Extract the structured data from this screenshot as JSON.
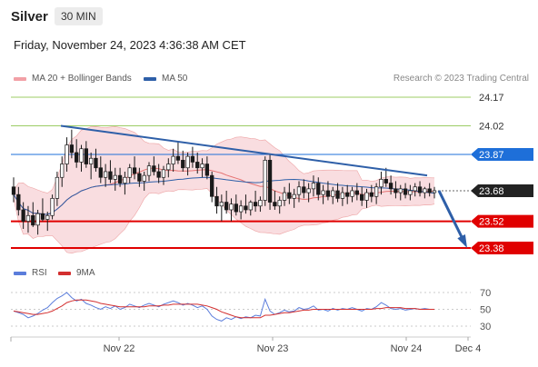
{
  "header": {
    "title": "Silver",
    "timeframe": "30 MIN",
    "datetime": "Friday, November 24, 2023 4:36:38 AM CET",
    "copyright": "Research © 2023 Trading Central"
  },
  "legend": {
    "bollinger": "MA 20 + Bollinger Bands",
    "ma50": "MA 50",
    "rsi": "RSI",
    "rsi_ma": "9MA"
  },
  "colors": {
    "candle": "#1a1a1a",
    "bollinger_fill": "#f5c6cb",
    "bollinger_line": "#e57373",
    "ma50": "#2e5fa8",
    "support": "#e00000",
    "resistance_green": "#9ccc65",
    "resistance_blue": "#1e6fd9",
    "current": "#222222",
    "trendline": "#2e5fa8",
    "rsi_line": "#5b7ddb",
    "rsi_ma": "#d32f2f"
  },
  "chart_data": [
    {
      "type": "candlestick",
      "title": "Silver",
      "timeframe": "30 MIN",
      "ylim": [
        23.28,
        24.25
      ],
      "x_ticks": [
        "Nov 22",
        "Nov 23",
        "Nov 24",
        "Dec 4"
      ],
      "levels": [
        {
          "value": 24.17,
          "label": "24.17",
          "kind": "resistance",
          "style": "green"
        },
        {
          "value": 24.02,
          "label": "24.02",
          "kind": "resistance",
          "style": "green"
        },
        {
          "value": 23.87,
          "label": "23.87",
          "kind": "resistance",
          "style": "blue"
        },
        {
          "value": 23.68,
          "label": "23.68",
          "kind": "current",
          "style": "dark"
        },
        {
          "value": 23.52,
          "label": "23.52",
          "kind": "support",
          "style": "red"
        },
        {
          "value": 23.38,
          "label": "23.38",
          "kind": "support",
          "style": "red"
        }
      ],
      "trendline": {
        "from": {
          "x": "Nov 21 13:00",
          "y": 24.02
        },
        "to": {
          "x": "Nov 24 08:00",
          "y": 23.76
        }
      },
      "forecast_arrow": {
        "from": 23.68,
        "to": 23.38
      },
      "candles_ohlc": [
        [
          23.7,
          23.75,
          23.62,
          23.66
        ],
        [
          23.66,
          23.7,
          23.55,
          23.58
        ],
        [
          23.58,
          23.62,
          23.48,
          23.52
        ],
        [
          23.52,
          23.6,
          23.46,
          23.55
        ],
        [
          23.55,
          23.62,
          23.49,
          23.5
        ],
        [
          23.5,
          23.58,
          23.45,
          23.56
        ],
        [
          23.56,
          23.64,
          23.52,
          23.53
        ],
        [
          23.53,
          23.57,
          23.47,
          23.55
        ],
        [
          23.55,
          23.66,
          23.53,
          23.64
        ],
        [
          23.64,
          23.78,
          23.6,
          23.75
        ],
        [
          23.75,
          23.86,
          23.7,
          23.82
        ],
        [
          23.82,
          23.96,
          23.78,
          23.92
        ],
        [
          23.92,
          24.0,
          23.85,
          23.88
        ],
        [
          23.88,
          23.95,
          23.8,
          23.83
        ],
        [
          23.83,
          23.92,
          23.78,
          23.9
        ],
        [
          23.9,
          23.94,
          23.8,
          23.82
        ],
        [
          23.82,
          23.88,
          23.74,
          23.85
        ],
        [
          23.85,
          23.9,
          23.78,
          23.8
        ],
        [
          23.8,
          23.86,
          23.72,
          23.75
        ],
        [
          23.75,
          23.82,
          23.7,
          23.78
        ],
        [
          23.78,
          23.84,
          23.72,
          23.74
        ],
        [
          23.74,
          23.8,
          23.68,
          23.76
        ],
        [
          23.76,
          23.8,
          23.7,
          23.72
        ],
        [
          23.72,
          23.78,
          23.66,
          23.75
        ],
        [
          23.75,
          23.82,
          23.72,
          23.8
        ],
        [
          23.8,
          23.86,
          23.74,
          23.77
        ],
        [
          23.77,
          23.8,
          23.7,
          23.73
        ],
        [
          23.73,
          23.78,
          23.68,
          23.76
        ],
        [
          23.76,
          23.83,
          23.73,
          23.81
        ],
        [
          23.81,
          23.86,
          23.76,
          23.78
        ],
        [
          23.78,
          23.82,
          23.72,
          23.75
        ],
        [
          23.75,
          23.81,
          23.71,
          23.79
        ],
        [
          23.79,
          23.85,
          23.75,
          23.82
        ],
        [
          23.82,
          23.9,
          23.78,
          23.86
        ],
        [
          23.86,
          23.94,
          23.82,
          23.84
        ],
        [
          23.84,
          23.89,
          23.78,
          23.8
        ],
        [
          23.8,
          23.88,
          23.76,
          23.86
        ],
        [
          23.86,
          23.91,
          23.8,
          23.83
        ],
        [
          23.83,
          23.88,
          23.77,
          23.8
        ],
        [
          23.8,
          23.85,
          23.75,
          23.82
        ],
        [
          23.82,
          23.86,
          23.74,
          23.76
        ],
        [
          23.76,
          23.78,
          23.62,
          23.65
        ],
        [
          23.65,
          23.7,
          23.56,
          23.6
        ],
        [
          23.6,
          23.66,
          23.52,
          23.62
        ],
        [
          23.62,
          23.68,
          23.56,
          23.58
        ],
        [
          23.58,
          23.64,
          23.52,
          23.61
        ],
        [
          23.61,
          23.66,
          23.55,
          23.57
        ],
        [
          23.57,
          23.63,
          23.53,
          23.6
        ],
        [
          23.6,
          23.66,
          23.56,
          23.58
        ],
        [
          23.58,
          23.63,
          23.55,
          23.62
        ],
        [
          23.62,
          23.68,
          23.57,
          23.6
        ],
        [
          23.6,
          23.65,
          23.57,
          23.63
        ],
        [
          23.63,
          23.86,
          23.6,
          23.84
        ],
        [
          23.84,
          23.87,
          23.58,
          23.62
        ],
        [
          23.62,
          23.68,
          23.58,
          23.6
        ],
        [
          23.6,
          23.65,
          23.56,
          23.63
        ],
        [
          23.63,
          23.7,
          23.6,
          23.67
        ],
        [
          23.67,
          23.72,
          23.61,
          23.64
        ],
        [
          23.64,
          23.69,
          23.59,
          23.66
        ],
        [
          23.66,
          23.73,
          23.62,
          23.7
        ],
        [
          23.7,
          23.74,
          23.64,
          23.67
        ],
        [
          23.67,
          23.72,
          23.62,
          23.69
        ],
        [
          23.69,
          23.76,
          23.65,
          23.72
        ],
        [
          23.72,
          23.75,
          23.63,
          23.66
        ],
        [
          23.66,
          23.71,
          23.61,
          23.68
        ],
        [
          23.68,
          23.73,
          23.63,
          23.65
        ],
        [
          23.65,
          23.7,
          23.61,
          23.68
        ],
        [
          23.68,
          23.72,
          23.62,
          23.64
        ],
        [
          23.64,
          23.7,
          23.6,
          23.67
        ],
        [
          23.67,
          23.71,
          23.61,
          23.65
        ],
        [
          23.65,
          23.7,
          23.62,
          23.68
        ],
        [
          23.68,
          23.72,
          23.63,
          23.66
        ],
        [
          23.66,
          23.7,
          23.6,
          23.63
        ],
        [
          23.63,
          23.69,
          23.59,
          23.67
        ],
        [
          23.67,
          23.71,
          23.62,
          23.65
        ],
        [
          23.65,
          23.72,
          23.61,
          23.7
        ],
        [
          23.7,
          23.78,
          23.66,
          23.74
        ],
        [
          23.74,
          23.8,
          23.7,
          23.72
        ],
        [
          23.72,
          23.76,
          23.66,
          23.69
        ],
        [
          23.69,
          23.73,
          23.64,
          23.67
        ],
        [
          23.67,
          23.71,
          23.63,
          23.69
        ],
        [
          23.69,
          23.72,
          23.64,
          23.66
        ],
        [
          23.66,
          23.71,
          23.63,
          23.68
        ],
        [
          23.68,
          23.72,
          23.65,
          23.7
        ],
        [
          23.7,
          23.73,
          23.65,
          23.67
        ],
        [
          23.67,
          23.7,
          23.64,
          23.69
        ],
        [
          23.69,
          23.72,
          23.65,
          23.67
        ],
        [
          23.67,
          23.7,
          23.64,
          23.68
        ]
      ]
    },
    {
      "type": "line",
      "title": "RSI",
      "ylim": [
        25,
        75
      ],
      "y_ticks": [
        70,
        50,
        30
      ],
      "series": [
        {
          "name": "RSI",
          "values": [
            48,
            46,
            44,
            40,
            42,
            45,
            49,
            52,
            58,
            63,
            66,
            70,
            64,
            60,
            62,
            57,
            55,
            52,
            50,
            53,
            51,
            54,
            50,
            52,
            56,
            54,
            52,
            55,
            57,
            55,
            53,
            56,
            58,
            60,
            58,
            55,
            57,
            55,
            52,
            54,
            50,
            42,
            38,
            36,
            40,
            38,
            41,
            39,
            41,
            40,
            43,
            42,
            62,
            48,
            44,
            46,
            49,
            47,
            48,
            52,
            50,
            51,
            54,
            49,
            50,
            48,
            51,
            49,
            51,
            50,
            52,
            50,
            48,
            51,
            50,
            53,
            58,
            55,
            51,
            50,
            51,
            49,
            50,
            51,
            50,
            51,
            50,
            50
          ]
        },
        {
          "name": "9MA",
          "values": [
            48,
            47,
            46,
            45,
            44,
            44,
            45,
            46,
            48,
            51,
            54,
            58,
            60,
            61,
            61,
            61,
            60,
            59,
            57,
            56,
            55,
            54,
            53,
            53,
            53,
            53,
            53,
            53,
            54,
            54,
            54,
            55,
            55,
            56,
            56,
            56,
            56,
            56,
            56,
            55,
            54,
            52,
            50,
            47,
            45,
            43,
            41,
            40,
            40,
            40,
            40,
            40,
            43,
            43,
            44,
            45,
            46,
            46,
            47,
            48,
            49,
            49,
            50,
            50,
            50,
            50,
            50,
            50,
            50,
            50,
            50,
            50,
            50,
            50,
            50,
            51,
            51,
            52,
            52,
            52,
            52,
            51,
            51,
            51,
            50,
            50,
            50,
            50
          ]
        }
      ]
    }
  ]
}
